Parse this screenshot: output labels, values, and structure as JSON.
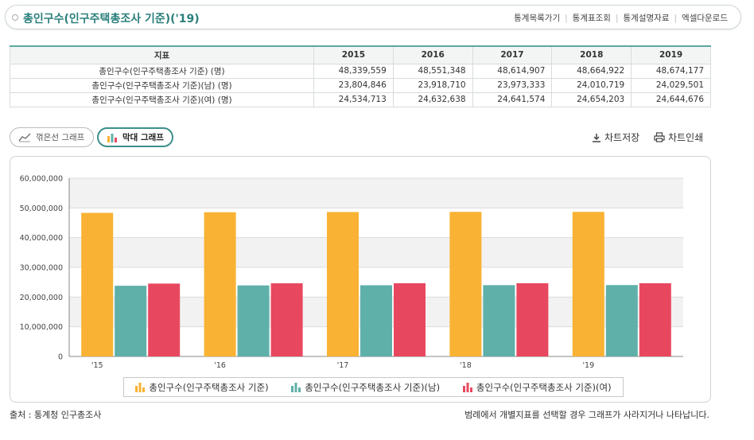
{
  "header": {
    "title": "총인구수(인구주택총조사 기준)('19)",
    "links": [
      "통계목록가기",
      "통계표조회",
      "통계설명자료",
      "엑셀다운로드"
    ]
  },
  "table": {
    "columns": [
      "지표",
      "2015",
      "2016",
      "2017",
      "2018",
      "2019"
    ],
    "rows": [
      {
        "label": "총인구수(인구주택총조사 기준) (명)",
        "values": [
          "48,339,559",
          "48,551,348",
          "48,614,907",
          "48,664,922",
          "48,674,177"
        ]
      },
      {
        "label": "총인구수(인구주택총조사 기준)(남) (명)",
        "values": [
          "23,804,846",
          "23,918,710",
          "23,973,333",
          "24,010,719",
          "24,029,501"
        ]
      },
      {
        "label": "총인구수(인구주택총조사 기준)(여) (명)",
        "values": [
          "24,534,713",
          "24,632,638",
          "24,641,574",
          "24,654,203",
          "24,644,676"
        ]
      }
    ]
  },
  "chart_tabs": {
    "line": "꺾은선 그래프",
    "bar": "막대 그래프",
    "active": "bar"
  },
  "tools": {
    "save": "차트저장",
    "print": "차트인쇄"
  },
  "chart_data": {
    "type": "bar",
    "categories": [
      "'15",
      "'16",
      "'17",
      "'18",
      "'19"
    ],
    "series": [
      {
        "name": "총인구수(인구주택총조사 기준)",
        "color": "#f9b233",
        "values": [
          48339559,
          48551348,
          48614907,
          48664922,
          48674177
        ]
      },
      {
        "name": "총인구수(인구주택총조사 기준)(남)",
        "color": "#5fb0a9",
        "values": [
          23804846,
          23918710,
          23973333,
          24010719,
          24029501
        ]
      },
      {
        "name": "총인구수(인구주택총조사 기준)(여)",
        "color": "#e8485f",
        "values": [
          24534713,
          24632638,
          24641574,
          24654203,
          24644676
        ]
      }
    ],
    "ylim": [
      0,
      60000000
    ],
    "yticks": [
      "0",
      "10,000,000",
      "20,000,000",
      "30,000,000",
      "40,000,000",
      "50,000,000",
      "60,000,000"
    ],
    "grid": true,
    "legend_position": "bottom"
  },
  "footer": {
    "source": "출처 : 통계청 인구총조사",
    "note": "범례에서 개별지표를 선택할 경우 그래프가 사라지거나 나타납니다."
  }
}
